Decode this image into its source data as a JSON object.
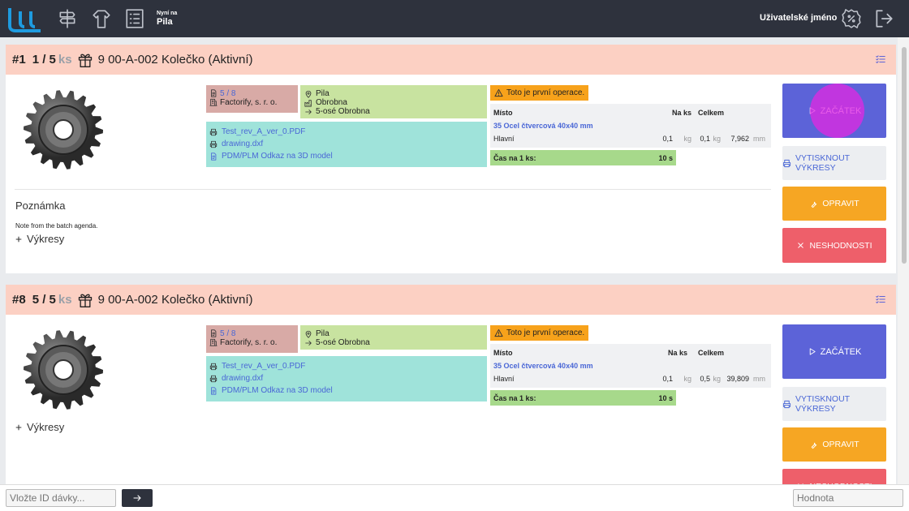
{
  "nav": {
    "now_label": "Nyní na",
    "now_value": "Pila",
    "username": "Uživatelské jméno"
  },
  "cards": [
    {
      "number": "#1",
      "quantity": "1 / 5",
      "unit": "ks",
      "product": "9 00-A-002 Kolečko (Aktivní)",
      "order": "5 / 8",
      "company": "Factorify, s. r. o.",
      "location": [
        "Pila",
        "Obrobna",
        "5-osé Obrobna"
      ],
      "files": [
        "Test_rev_A_ver_0.PDF",
        "drawing.dxf",
        "PDM/PLM Odkaz na 3D model"
      ],
      "warning": "Toto je první operace.",
      "table": {
        "headers": [
          "Místo",
          "Na ks",
          "Celkem"
        ],
        "material": "35 Ocel čtvercová 40x40 mm",
        "row": {
          "place": "Hlavní",
          "per_piece": "0,1",
          "per_piece_unit": "kg",
          "total": "0,1",
          "total_unit": "kg",
          "length": "7,962",
          "length_unit": "mm"
        }
      },
      "time_label": "Čas na 1 ks:",
      "time": "10 s",
      "buttons": [
        "ZAČÁTEK",
        "VYTISKNOUT VÝKRESY",
        "OPRAVIT",
        "NESHODNOSTI"
      ],
      "note_title": "Poznámka",
      "note": "Note from the batch agenda.",
      "drawings": "Výkresy"
    },
    {
      "number": "#8",
      "quantity": "5 / 5",
      "unit": "ks",
      "product": "9 00-A-002 Kolečko (Aktivní)",
      "order": "5 / 8",
      "company": "Factorify, s. r. o.",
      "location": [
        "Pila",
        "5-osé Obrobna"
      ],
      "files": [
        "Test_rev_A_ver_0.PDF",
        "drawing.dxf",
        "PDM/PLM Odkaz na 3D model"
      ],
      "warning": "Toto je první operace.",
      "table": {
        "headers": [
          "Místo",
          "Na ks",
          "Celkem"
        ],
        "material": "35 Ocel čtvercová 40x40 mm",
        "row": {
          "place": "Hlavní",
          "per_piece": "0,1",
          "per_piece_unit": "kg",
          "total": "0,5",
          "total_unit": "kg",
          "length": "39,809",
          "length_unit": "mm"
        }
      },
      "time_label": "Čas na 1 ks:",
      "time": "10 s",
      "buttons": [
        "ZAČÁTEK",
        "VYTISKNOUT VÝKRESY",
        "OPRAVIT",
        "NESHODNOSTI"
      ],
      "drawings": "Výkresy"
    }
  ],
  "footer": {
    "batch_placeholder": "Vložte ID dávky...",
    "value_placeholder": "Hodnota"
  }
}
